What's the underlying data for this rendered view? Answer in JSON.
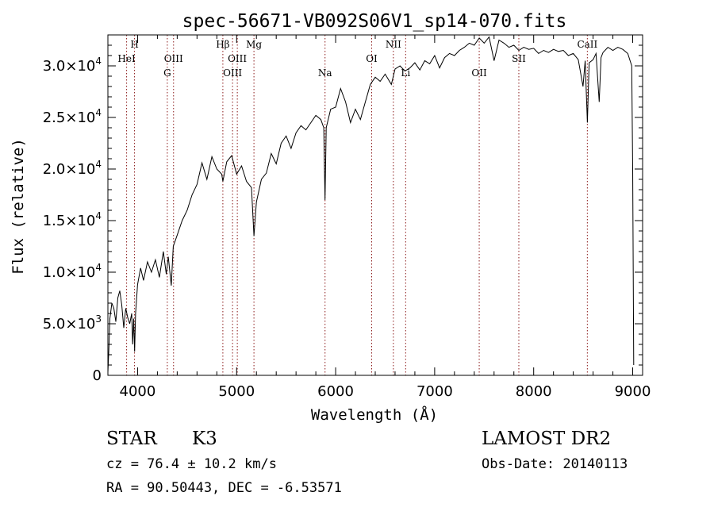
{
  "chart_data": {
    "type": "line",
    "title": "spec-56671-VB092S06V1_sp14-070.fits",
    "xlabel": "Wavelength (Å)",
    "ylabel": "Flux (relative)",
    "xlim": [
      3700,
      9100
    ],
    "ylim": [
      0,
      33000
    ],
    "x_ticks": [
      4000,
      5000,
      6000,
      7000,
      8000,
      9000
    ],
    "y_ticks": [
      {
        "value": 0,
        "mantissa": "0",
        "exp": ""
      },
      {
        "value": 5000,
        "mantissa": "5.0×10",
        "exp": "3"
      },
      {
        "value": 10000,
        "mantissa": "1.0×10",
        "exp": "4"
      },
      {
        "value": 15000,
        "mantissa": "1.5×10",
        "exp": "4"
      },
      {
        "value": 20000,
        "mantissa": "2.0×10",
        "exp": "4"
      },
      {
        "value": 25000,
        "mantissa": "2.5×10",
        "exp": "4"
      },
      {
        "value": 30000,
        "mantissa": "3.0×10",
        "exp": "4"
      }
    ],
    "grid": false,
    "series": [
      {
        "color": "#000000",
        "points": [
          [
            3700,
            300
          ],
          [
            3710,
            2500
          ],
          [
            3720,
            5500
          ],
          [
            3740,
            7000
          ],
          [
            3760,
            6500
          ],
          [
            3780,
            5200
          ],
          [
            3800,
            7500
          ],
          [
            3820,
            8200
          ],
          [
            3840,
            6800
          ],
          [
            3860,
            4600
          ],
          [
            3880,
            6500
          ],
          [
            3900,
            5600
          ],
          [
            3920,
            5000
          ],
          [
            3940,
            6000
          ],
          [
            3950,
            3000
          ],
          [
            3960,
            5500
          ],
          [
            3970,
            2300
          ],
          [
            3980,
            6000
          ],
          [
            4000,
            8800
          ],
          [
            4030,
            10400
          ],
          [
            4060,
            9200
          ],
          [
            4100,
            11000
          ],
          [
            4140,
            10000
          ],
          [
            4180,
            11200
          ],
          [
            4220,
            9500
          ],
          [
            4260,
            12000
          ],
          [
            4290,
            9800
          ],
          [
            4310,
            11500
          ],
          [
            4340,
            8700
          ],
          [
            4360,
            12500
          ],
          [
            4400,
            13600
          ],
          [
            4450,
            15000
          ],
          [
            4500,
            16000
          ],
          [
            4550,
            17500
          ],
          [
            4600,
            18500
          ],
          [
            4650,
            20600
          ],
          [
            4700,
            19000
          ],
          [
            4750,
            21200
          ],
          [
            4800,
            20000
          ],
          [
            4850,
            19500
          ],
          [
            4861,
            18800
          ],
          [
            4900,
            20700
          ],
          [
            4950,
            21300
          ],
          [
            5000,
            19500
          ],
          [
            5050,
            20300
          ],
          [
            5100,
            18800
          ],
          [
            5150,
            18200
          ],
          [
            5175,
            13500
          ],
          [
            5200,
            16800
          ],
          [
            5250,
            19000
          ],
          [
            5300,
            19600
          ],
          [
            5350,
            21500
          ],
          [
            5400,
            20500
          ],
          [
            5450,
            22500
          ],
          [
            5500,
            23200
          ],
          [
            5550,
            22000
          ],
          [
            5600,
            23500
          ],
          [
            5650,
            24200
          ],
          [
            5700,
            23800
          ],
          [
            5750,
            24500
          ],
          [
            5800,
            25200
          ],
          [
            5850,
            24800
          ],
          [
            5880,
            24000
          ],
          [
            5893,
            17000
          ],
          [
            5905,
            24000
          ],
          [
            5950,
            25800
          ],
          [
            6000,
            26000
          ],
          [
            6050,
            27800
          ],
          [
            6100,
            26500
          ],
          [
            6150,
            24500
          ],
          [
            6200,
            25800
          ],
          [
            6250,
            24800
          ],
          [
            6300,
            26500
          ],
          [
            6350,
            28200
          ],
          [
            6400,
            28900
          ],
          [
            6450,
            28500
          ],
          [
            6500,
            29200
          ],
          [
            6563,
            28200
          ],
          [
            6600,
            29700
          ],
          [
            6650,
            30000
          ],
          [
            6700,
            29500
          ],
          [
            6750,
            29800
          ],
          [
            6800,
            30300
          ],
          [
            6850,
            29600
          ],
          [
            6900,
            30500
          ],
          [
            6950,
            30200
          ],
          [
            7000,
            31000
          ],
          [
            7050,
            29800
          ],
          [
            7100,
            30800
          ],
          [
            7150,
            31200
          ],
          [
            7200,
            31000
          ],
          [
            7250,
            31500
          ],
          [
            7300,
            31800
          ],
          [
            7350,
            32200
          ],
          [
            7400,
            32000
          ],
          [
            7450,
            32700
          ],
          [
            7500,
            32200
          ],
          [
            7550,
            32800
          ],
          [
            7600,
            30500
          ],
          [
            7650,
            32500
          ],
          [
            7700,
            32200
          ],
          [
            7750,
            31800
          ],
          [
            7800,
            32000
          ],
          [
            7850,
            31500
          ],
          [
            7900,
            31800
          ],
          [
            7950,
            31600
          ],
          [
            8000,
            31700
          ],
          [
            8050,
            31200
          ],
          [
            8100,
            31500
          ],
          [
            8150,
            31300
          ],
          [
            8200,
            31600
          ],
          [
            8250,
            31400
          ],
          [
            8300,
            31500
          ],
          [
            8350,
            31000
          ],
          [
            8400,
            31200
          ],
          [
            8450,
            30600
          ],
          [
            8498,
            28000
          ],
          [
            8520,
            30500
          ],
          [
            8542,
            24500
          ],
          [
            8560,
            30300
          ],
          [
            8600,
            30600
          ],
          [
            8630,
            31200
          ],
          [
            8662,
            26500
          ],
          [
            8680,
            30800
          ],
          [
            8700,
            31300
          ],
          [
            8750,
            31800
          ],
          [
            8800,
            31500
          ],
          [
            8850,
            31800
          ],
          [
            8900,
            31600
          ],
          [
            8950,
            31200
          ],
          [
            8990,
            30000
          ],
          [
            9000,
            20000
          ],
          [
            9010,
            1000
          ]
        ]
      }
    ],
    "line_markers": [
      {
        "wavelength": 3889,
        "label": "HeI",
        "row": 1
      },
      {
        "wavelength": 3969,
        "label": "H",
        "row": 0
      },
      {
        "wavelength": 4300,
        "label": "G",
        "row": 2
      },
      {
        "wavelength": 4363,
        "label": "OIII",
        "row": 1
      },
      {
        "wavelength": 4861,
        "label": "Hβ",
        "row": 0
      },
      {
        "wavelength": 4959,
        "label": "OIII",
        "row": 2
      },
      {
        "wavelength": 5007,
        "label": "OIII",
        "row": 1
      },
      {
        "wavelength": 5175,
        "label": "Mg",
        "row": 0
      },
      {
        "wavelength": 5893,
        "label": "Na",
        "row": 2
      },
      {
        "wavelength": 6364,
        "label": "OI",
        "row": 1
      },
      {
        "wavelength": 6583,
        "label": "NII",
        "row": 0
      },
      {
        "wavelength": 6707,
        "label": "Li",
        "row": 2
      },
      {
        "wavelength": 7450,
        "label": "OII",
        "row": 2
      },
      {
        "wavelength": 7850,
        "label": "SII",
        "row": 1
      },
      {
        "wavelength": 8542,
        "label": "CaII",
        "row": 0
      }
    ],
    "marker_color": "#8b1a1a"
  },
  "info": {
    "class": "STAR",
    "subclass": "K3",
    "survey": "LAMOST DR2",
    "cz": "cz = 76.4 ± 10.2 km/s",
    "obs_date": "Obs-Date: 20140113",
    "coords": "RA =  90.50443, DEC =  -6.53571"
  }
}
